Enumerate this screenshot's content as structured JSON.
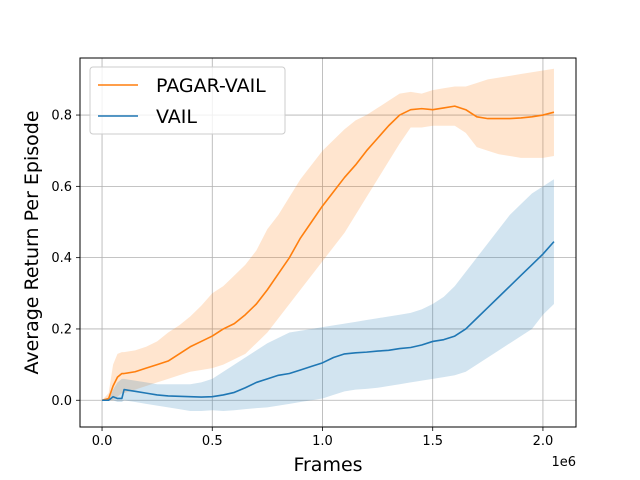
{
  "chart_data": {
    "type": "line",
    "title": "",
    "xlabel": "Frames",
    "ylabel": "Average Return Per Episode",
    "x_offset_label": "1e6",
    "x_scale": 1000000,
    "xlim": [
      -100000,
      2150000
    ],
    "ylim": [
      -0.075,
      0.96
    ],
    "xticks": [
      0.0,
      0.5,
      1.0,
      1.5,
      2.0
    ],
    "xtick_labels": [
      "0.0",
      "0.5",
      "1.0",
      "1.5",
      "2.0"
    ],
    "yticks": [
      0.0,
      0.2,
      0.4,
      0.6,
      0.8
    ],
    "ytick_labels": [
      "0.0",
      "0.2",
      "0.4",
      "0.6",
      "0.8"
    ],
    "grid": true,
    "legend_position": "top-left",
    "series": [
      {
        "name": "PAGAR-VAIL",
        "color": "#ff7f0e",
        "x": [
          0,
          30000,
          50000,
          70000,
          90000,
          100000,
          150000,
          200000,
          250000,
          300000,
          350000,
          400000,
          450000,
          500000,
          550000,
          600000,
          650000,
          700000,
          750000,
          800000,
          850000,
          900000,
          950000,
          1000000,
          1050000,
          1100000,
          1150000,
          1200000,
          1250000,
          1300000,
          1350000,
          1400000,
          1450000,
          1500000,
          1550000,
          1600000,
          1650000,
          1700000,
          1750000,
          1800000,
          1850000,
          1900000,
          1950000,
          2000000,
          2050000
        ],
        "mean": [
          0.0,
          0.005,
          0.04,
          0.065,
          0.075,
          0.075,
          0.08,
          0.09,
          0.1,
          0.11,
          0.13,
          0.15,
          0.165,
          0.18,
          0.2,
          0.215,
          0.24,
          0.27,
          0.31,
          0.355,
          0.4,
          0.455,
          0.5,
          0.545,
          0.585,
          0.625,
          0.66,
          0.7,
          0.735,
          0.77,
          0.8,
          0.815,
          0.818,
          0.815,
          0.82,
          0.825,
          0.815,
          0.795,
          0.79,
          0.79,
          0.79,
          0.792,
          0.795,
          0.8,
          0.808
        ],
        "lower": [
          0.0,
          0.0,
          0.0,
          0.01,
          0.02,
          0.02,
          0.03,
          0.04,
          0.05,
          0.06,
          0.07,
          0.08,
          0.085,
          0.09,
          0.1,
          0.115,
          0.13,
          0.16,
          0.19,
          0.23,
          0.27,
          0.31,
          0.35,
          0.39,
          0.43,
          0.47,
          0.52,
          0.57,
          0.62,
          0.67,
          0.72,
          0.765,
          0.765,
          0.77,
          0.77,
          0.77,
          0.75,
          0.71,
          0.7,
          0.69,
          0.685,
          0.68,
          0.68,
          0.68,
          0.685
        ],
        "upper": [
          0.0,
          0.02,
          0.1,
          0.13,
          0.135,
          0.135,
          0.14,
          0.15,
          0.165,
          0.19,
          0.21,
          0.235,
          0.265,
          0.3,
          0.32,
          0.35,
          0.38,
          0.42,
          0.48,
          0.52,
          0.57,
          0.62,
          0.66,
          0.7,
          0.73,
          0.76,
          0.785,
          0.8,
          0.82,
          0.84,
          0.86,
          0.865,
          0.86,
          0.87,
          0.875,
          0.88,
          0.88,
          0.89,
          0.9,
          0.905,
          0.91,
          0.915,
          0.92,
          0.925,
          0.93
        ]
      },
      {
        "name": "VAIL",
        "color": "#1f77b4",
        "x": [
          0,
          30000,
          50000,
          70000,
          90000,
          100000,
          150000,
          200000,
          250000,
          300000,
          350000,
          400000,
          450000,
          500000,
          550000,
          600000,
          650000,
          700000,
          750000,
          800000,
          850000,
          900000,
          950000,
          1000000,
          1050000,
          1100000,
          1150000,
          1200000,
          1250000,
          1300000,
          1350000,
          1400000,
          1450000,
          1500000,
          1550000,
          1600000,
          1650000,
          1700000,
          1750000,
          1800000,
          1850000,
          1900000,
          1950000,
          2000000,
          2050000
        ],
        "mean": [
          0.0,
          0.0,
          0.01,
          0.005,
          0.005,
          0.03,
          0.025,
          0.02,
          0.015,
          0.012,
          0.011,
          0.01,
          0.009,
          0.01,
          0.015,
          0.022,
          0.035,
          0.05,
          0.06,
          0.07,
          0.075,
          0.085,
          0.095,
          0.105,
          0.12,
          0.13,
          0.133,
          0.135,
          0.138,
          0.14,
          0.145,
          0.148,
          0.155,
          0.165,
          0.17,
          0.18,
          0.2,
          0.23,
          0.26,
          0.29,
          0.32,
          0.35,
          0.38,
          0.41,
          0.445
        ],
        "lower": [
          0.0,
          0.0,
          0.0,
          -0.005,
          -0.005,
          0.0,
          -0.005,
          -0.01,
          -0.015,
          -0.02,
          -0.025,
          -0.03,
          -0.03,
          -0.028,
          -0.03,
          -0.028,
          -0.025,
          -0.022,
          -0.02,
          -0.015,
          -0.01,
          -0.005,
          0.0,
          0.005,
          0.015,
          0.025,
          0.03,
          0.032,
          0.035,
          0.04,
          0.045,
          0.05,
          0.055,
          0.06,
          0.065,
          0.07,
          0.08,
          0.1,
          0.12,
          0.14,
          0.16,
          0.18,
          0.2,
          0.24,
          0.27
        ],
        "upper": [
          0.0,
          0.005,
          0.03,
          0.05,
          0.06,
          0.06,
          0.055,
          0.05,
          0.045,
          0.045,
          0.045,
          0.045,
          0.05,
          0.06,
          0.08,
          0.1,
          0.12,
          0.14,
          0.16,
          0.175,
          0.19,
          0.195,
          0.2,
          0.205,
          0.21,
          0.215,
          0.22,
          0.225,
          0.23,
          0.235,
          0.24,
          0.245,
          0.255,
          0.27,
          0.29,
          0.32,
          0.36,
          0.4,
          0.44,
          0.48,
          0.52,
          0.55,
          0.58,
          0.6,
          0.62
        ]
      }
    ]
  }
}
